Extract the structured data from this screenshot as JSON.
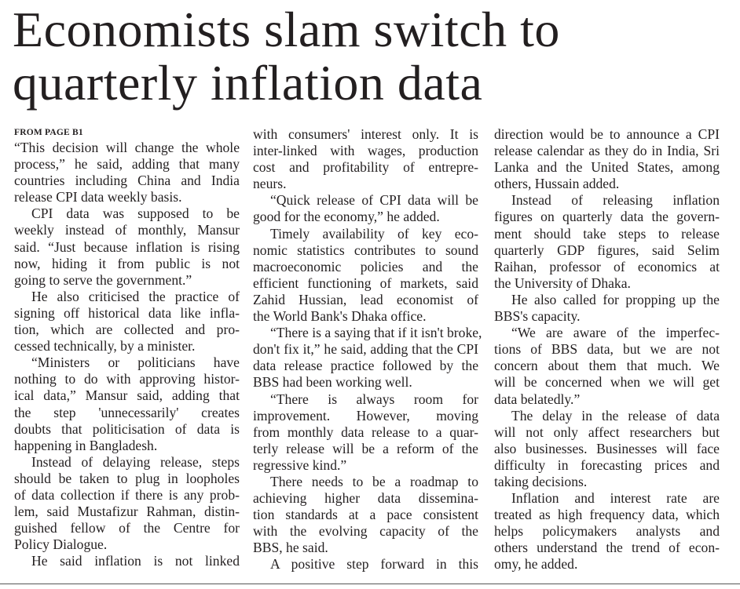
{
  "headline": "Economists slam switch to quarterly inflation data",
  "kicker": "FROM PAGE B1",
  "columns": [
    [
      {
        "continued_from": false,
        "continues": false,
        "lines": [
          "“This decision will change the whole",
          "process,” he said, adding that many",
          "countries including China and India",
          "release CPI data weekly basis."
        ]
      },
      {
        "continued_from": false,
        "continues": false,
        "lines": [
          "CPI data was supposed to be",
          "weekly instead of monthly, Mansur",
          "said. “Just because inflation is rising",
          "now, hiding it from public is not",
          "going to serve the government.”"
        ]
      },
      {
        "continued_from": false,
        "continues": false,
        "lines": [
          "He also criticised the practice of",
          "signing off historical data like infla-",
          "tion, which are collected and pro-",
          "cessed technically, by a minister."
        ]
      },
      {
        "continued_from": false,
        "continues": false,
        "lines": [
          "“Ministers or politicians have",
          "nothing to do with approving histor-",
          "ical data,” Mansur said, adding that",
          "the step 'unnecessarily' creates",
          "doubts that politicisation of data is",
          "happening in Bangladesh."
        ]
      },
      {
        "continued_from": false,
        "continues": false,
        "lines": [
          "Instead of delaying release, steps",
          "should be taken to plug in loopholes",
          "of data collection if there is any prob-",
          "lem, said Mustafizur Rahman, distin-",
          "guished fellow of the Centre for",
          "Policy Dialogue."
        ]
      },
      {
        "continued_from": false,
        "continues": true,
        "lines": [
          "He said inflation is not linked"
        ]
      }
    ],
    [
      {
        "continued_from": true,
        "continues": false,
        "lines": [
          "with consumers' interest only. It is",
          "inter-linked with wages, production",
          "cost and profitability of entrepre-",
          "neurs."
        ]
      },
      {
        "continued_from": false,
        "continues": false,
        "lines": [
          "“Quick release of CPI data will be",
          "good for the economy,” he added."
        ]
      },
      {
        "continued_from": false,
        "continues": false,
        "lines": [
          "Timely availability of key eco-",
          "nomic statistics contributes to sound",
          "macroeconomic policies and the",
          "efficient functioning of markets, said",
          "Zahid Hussian, lead economist of",
          "the World Bank's Dhaka office."
        ]
      },
      {
        "continued_from": false,
        "continues": false,
        "lines": [
          "“There is a saying that if it isn't broke,",
          "don't fix it,” he said, adding that the CPI",
          "data release practice followed by the",
          "BBS had been working well."
        ]
      },
      {
        "continued_from": false,
        "continues": false,
        "lines": [
          "“There is always room for",
          "improvement. However, moving",
          "from monthly data release to a quar-",
          "terly release will be a reform of the",
          "regressive kind.”"
        ]
      },
      {
        "continued_from": false,
        "continues": false,
        "lines": [
          "There needs to be a roadmap to",
          "achieving higher data dissemina-",
          "tion standards at a pace consistent",
          "with the evolving capacity of the",
          "BBS, he said."
        ]
      },
      {
        "continued_from": false,
        "continues": true,
        "lines": [
          "A positive step forward in this"
        ]
      }
    ],
    [
      {
        "continued_from": true,
        "continues": false,
        "lines": [
          "direction would be to announce a CPI",
          "release calendar as they do in India, Sri",
          "Lanka and the United States, among",
          "others, Hussain added."
        ]
      },
      {
        "continued_from": false,
        "continues": false,
        "lines": [
          "Instead of releasing inflation",
          "figures on quarterly data the govern-",
          "ment should take steps to release",
          "quarterly GDP figures, said Selim",
          "Raihan, professor of economics at",
          "the University of Dhaka."
        ]
      },
      {
        "continued_from": false,
        "continues": false,
        "lines": [
          "He also called for propping up the",
          "BBS's capacity."
        ]
      },
      {
        "continued_from": false,
        "continues": false,
        "lines": [
          "“We are aware of the imperfec-",
          "tions of BBS data, but we are not",
          "concern about them that much. We",
          "will be concerned when we will get",
          "data belatedly.”"
        ]
      },
      {
        "continued_from": false,
        "continues": false,
        "lines": [
          "The delay in the release of data",
          "will not only affect researchers but",
          "also businesses. Businesses will face",
          "difficulty in forecasting prices and",
          "taking decisions."
        ]
      },
      {
        "continued_from": false,
        "continues": false,
        "lines": [
          "Inflation and interest rate are",
          "treated as high frequency data, which",
          "helps policymakers analysts and",
          "others understand the trend of econ-",
          "omy, he added."
        ]
      }
    ]
  ]
}
